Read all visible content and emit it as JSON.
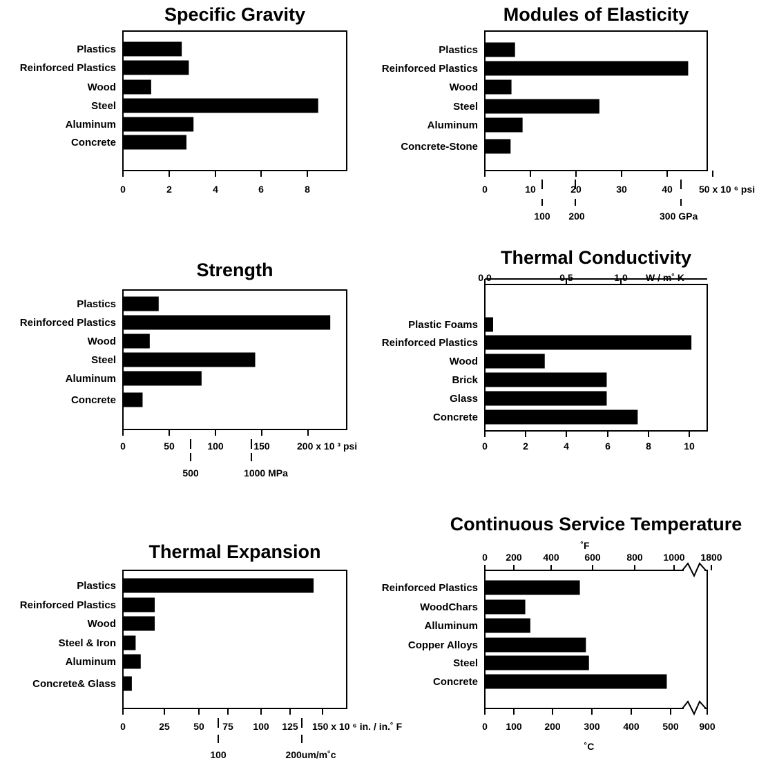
{
  "chart_data": [
    {
      "id": "sg",
      "type": "bar",
      "orientation": "horizontal",
      "title": "Specific Gravity",
      "categories": [
        "Plastics",
        "Reinforced Plastics",
        "Wood",
        "Steel",
        "Aluminum",
        "Concrete"
      ],
      "values": [
        2.5,
        2.8,
        1.2,
        8.3,
        3.0,
        2.7
      ],
      "xlim": [
        0,
        9.6
      ],
      "xticks": [
        "0",
        "2",
        "4",
        "6",
        "8"
      ],
      "grid": false
    },
    {
      "id": "me",
      "type": "bar",
      "orientation": "horizontal",
      "title": "Modules of Elasticity",
      "categories": [
        "Plastics",
        "Reinforced Plastics",
        "Wood",
        "Steel",
        "Aluminum",
        "Concrete-Stone"
      ],
      "values": [
        6.8,
        45.8,
        6.0,
        25.8,
        8.5,
        5.8
      ],
      "xlim": [
        0,
        49
      ],
      "xticks": [
        "0",
        "10",
        "20",
        "30",
        "40"
      ],
      "xunit": "50 x 10 ⁶ psi",
      "secondary_axis": {
        "ticks": [
          "100",
          "200",
          "300 GPa"
        ],
        "values": [
          100,
          200,
          300
        ],
        "position": "bottom"
      },
      "grid": false
    },
    {
      "id": "st",
      "type": "bar",
      "orientation": "horizontal",
      "title": "Strength",
      "categories": [
        "Plastics",
        "Reinforced Plastics",
        "Wood",
        "Steel",
        "Aluminum",
        "Concrete"
      ],
      "values": [
        40,
        232,
        30,
        148,
        88,
        22
      ],
      "xlim": [
        0,
        245
      ],
      "xticks": [
        "0",
        "50",
        "100",
        "150",
        "200 x 10 ³ psi"
      ],
      "secondary_axis": {
        "ticks": [
          "500",
          "1000 MPa"
        ],
        "values": [
          500,
          1000
        ],
        "position": "bottom"
      },
      "grid": false
    },
    {
      "id": "tc",
      "type": "bar",
      "orientation": "horizontal",
      "title": "Thermal Conductivity",
      "categories": [
        "Plastic Foams",
        "Reinforced Plastics",
        "Wood",
        "Brick",
        "Glass",
        "Concrete"
      ],
      "values": [
        0.4,
        10.0,
        2.9,
        5.9,
        5.9,
        7.4
      ],
      "xlim": [
        0,
        11
      ],
      "xticks": [
        "0",
        "2",
        "4",
        "6",
        "8",
        "10"
      ],
      "secondary_axis": {
        "ticks": [
          "0.0",
          "0.5",
          "1.0"
        ],
        "values": [
          0,
          0.5,
          1.0
        ],
        "unit": "W / m˚ K",
        "position": "top"
      },
      "grid": false
    },
    {
      "id": "te",
      "type": "bar",
      "orientation": "horizontal",
      "title": "Thermal Expansion",
      "categories": [
        "Plastics",
        "Reinforced Plastics",
        "Wood",
        "Steel & Iron",
        "Aluminum",
        "Concrete& Glass"
      ],
      "values": [
        150,
        25,
        25,
        10,
        14,
        7
      ],
      "xlim": [
        0,
        163
      ],
      "xticks": [
        "0",
        "25",
        "50",
        "75",
        "100",
        "125",
        "150 x 10 ⁶ in. / in.˚ F"
      ],
      "secondary_axis": {
        "ticks": [
          "100",
          "200um/m˚c"
        ],
        "values": [
          100,
          200
        ],
        "position": "bottom"
      },
      "grid": false
    },
    {
      "id": "cst",
      "type": "bar",
      "orientation": "horizontal",
      "title": "Continuous Service Temperature",
      "categories": [
        "Reinforced Plastics",
        "WoodChars",
        "Alluminum",
        "Copper Alloys",
        "Steel",
        "Concrete"
      ],
      "values": [
        470,
        200,
        225,
        500,
        515,
        900
      ],
      "values_unit": "°F",
      "xlim": [
        0,
        1100
      ],
      "top_axis": {
        "label": "˚F",
        "ticks": [
          "0",
          "200",
          "400",
          "600",
          "800",
          "1000",
          "1800"
        ]
      },
      "bottom_axis": {
        "label": "˚C",
        "ticks": [
          "0",
          "100",
          "200",
          "300",
          "400",
          "500",
          "900"
        ]
      },
      "axis_break": true,
      "grid": false
    }
  ]
}
